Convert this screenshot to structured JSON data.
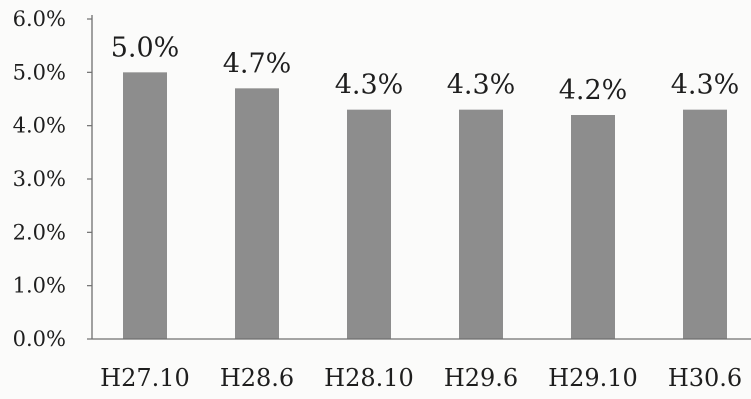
{
  "chart_data": {
    "type": "bar",
    "title": "",
    "xlabel": "",
    "ylabel": "",
    "categories": [
      "H27.10",
      "H28.6",
      "H28.10",
      "H29.6",
      "H29.10",
      "H30.6"
    ],
    "values": [
      5.0,
      4.7,
      4.3,
      4.3,
      4.2,
      4.3
    ],
    "data_labels": [
      "5.0%",
      "4.7%",
      "4.3%",
      "4.3%",
      "4.2%",
      "4.3%"
    ],
    "ylim": [
      0,
      6
    ],
    "yticks": [
      0,
      1,
      2,
      3,
      4,
      5,
      6
    ],
    "ytick_labels": [
      "0.0%",
      "1.0%",
      "2.0%",
      "3.0%",
      "4.0%",
      "5.0%",
      "6.0%"
    ],
    "grid": false,
    "legend": "none",
    "colors": {
      "bar": "#8d8d8d",
      "axis": "#6f6f6f",
      "text": "#1e1e1e",
      "background": "#fbfbfa"
    }
  }
}
